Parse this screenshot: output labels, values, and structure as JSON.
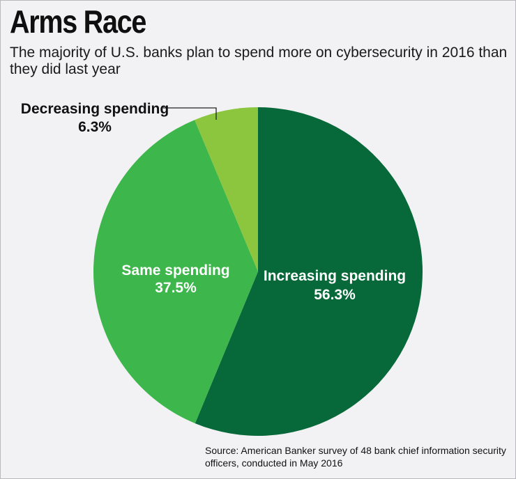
{
  "chart_data": {
    "type": "pie",
    "title": "Arms Race",
    "subtitle": "The majority of U.S. banks plan to spend more on cybersecurity in 2016 than they did last year",
    "slices": [
      {
        "label": "Increasing spending",
        "value": 56.3,
        "value_label": "56.3%",
        "color": "#07693a"
      },
      {
        "label": "Same spending",
        "value": 37.5,
        "value_label": "37.5%",
        "color": "#3db64b"
      },
      {
        "label": "Decreasing spending",
        "value": 6.3,
        "value_label": "6.3%",
        "color": "#8cc63f"
      }
    ],
    "start": "12 o'clock, clockwise"
  },
  "source": "Source: American Banker survey of 48 bank chief information security officers, conducted in May 2016"
}
